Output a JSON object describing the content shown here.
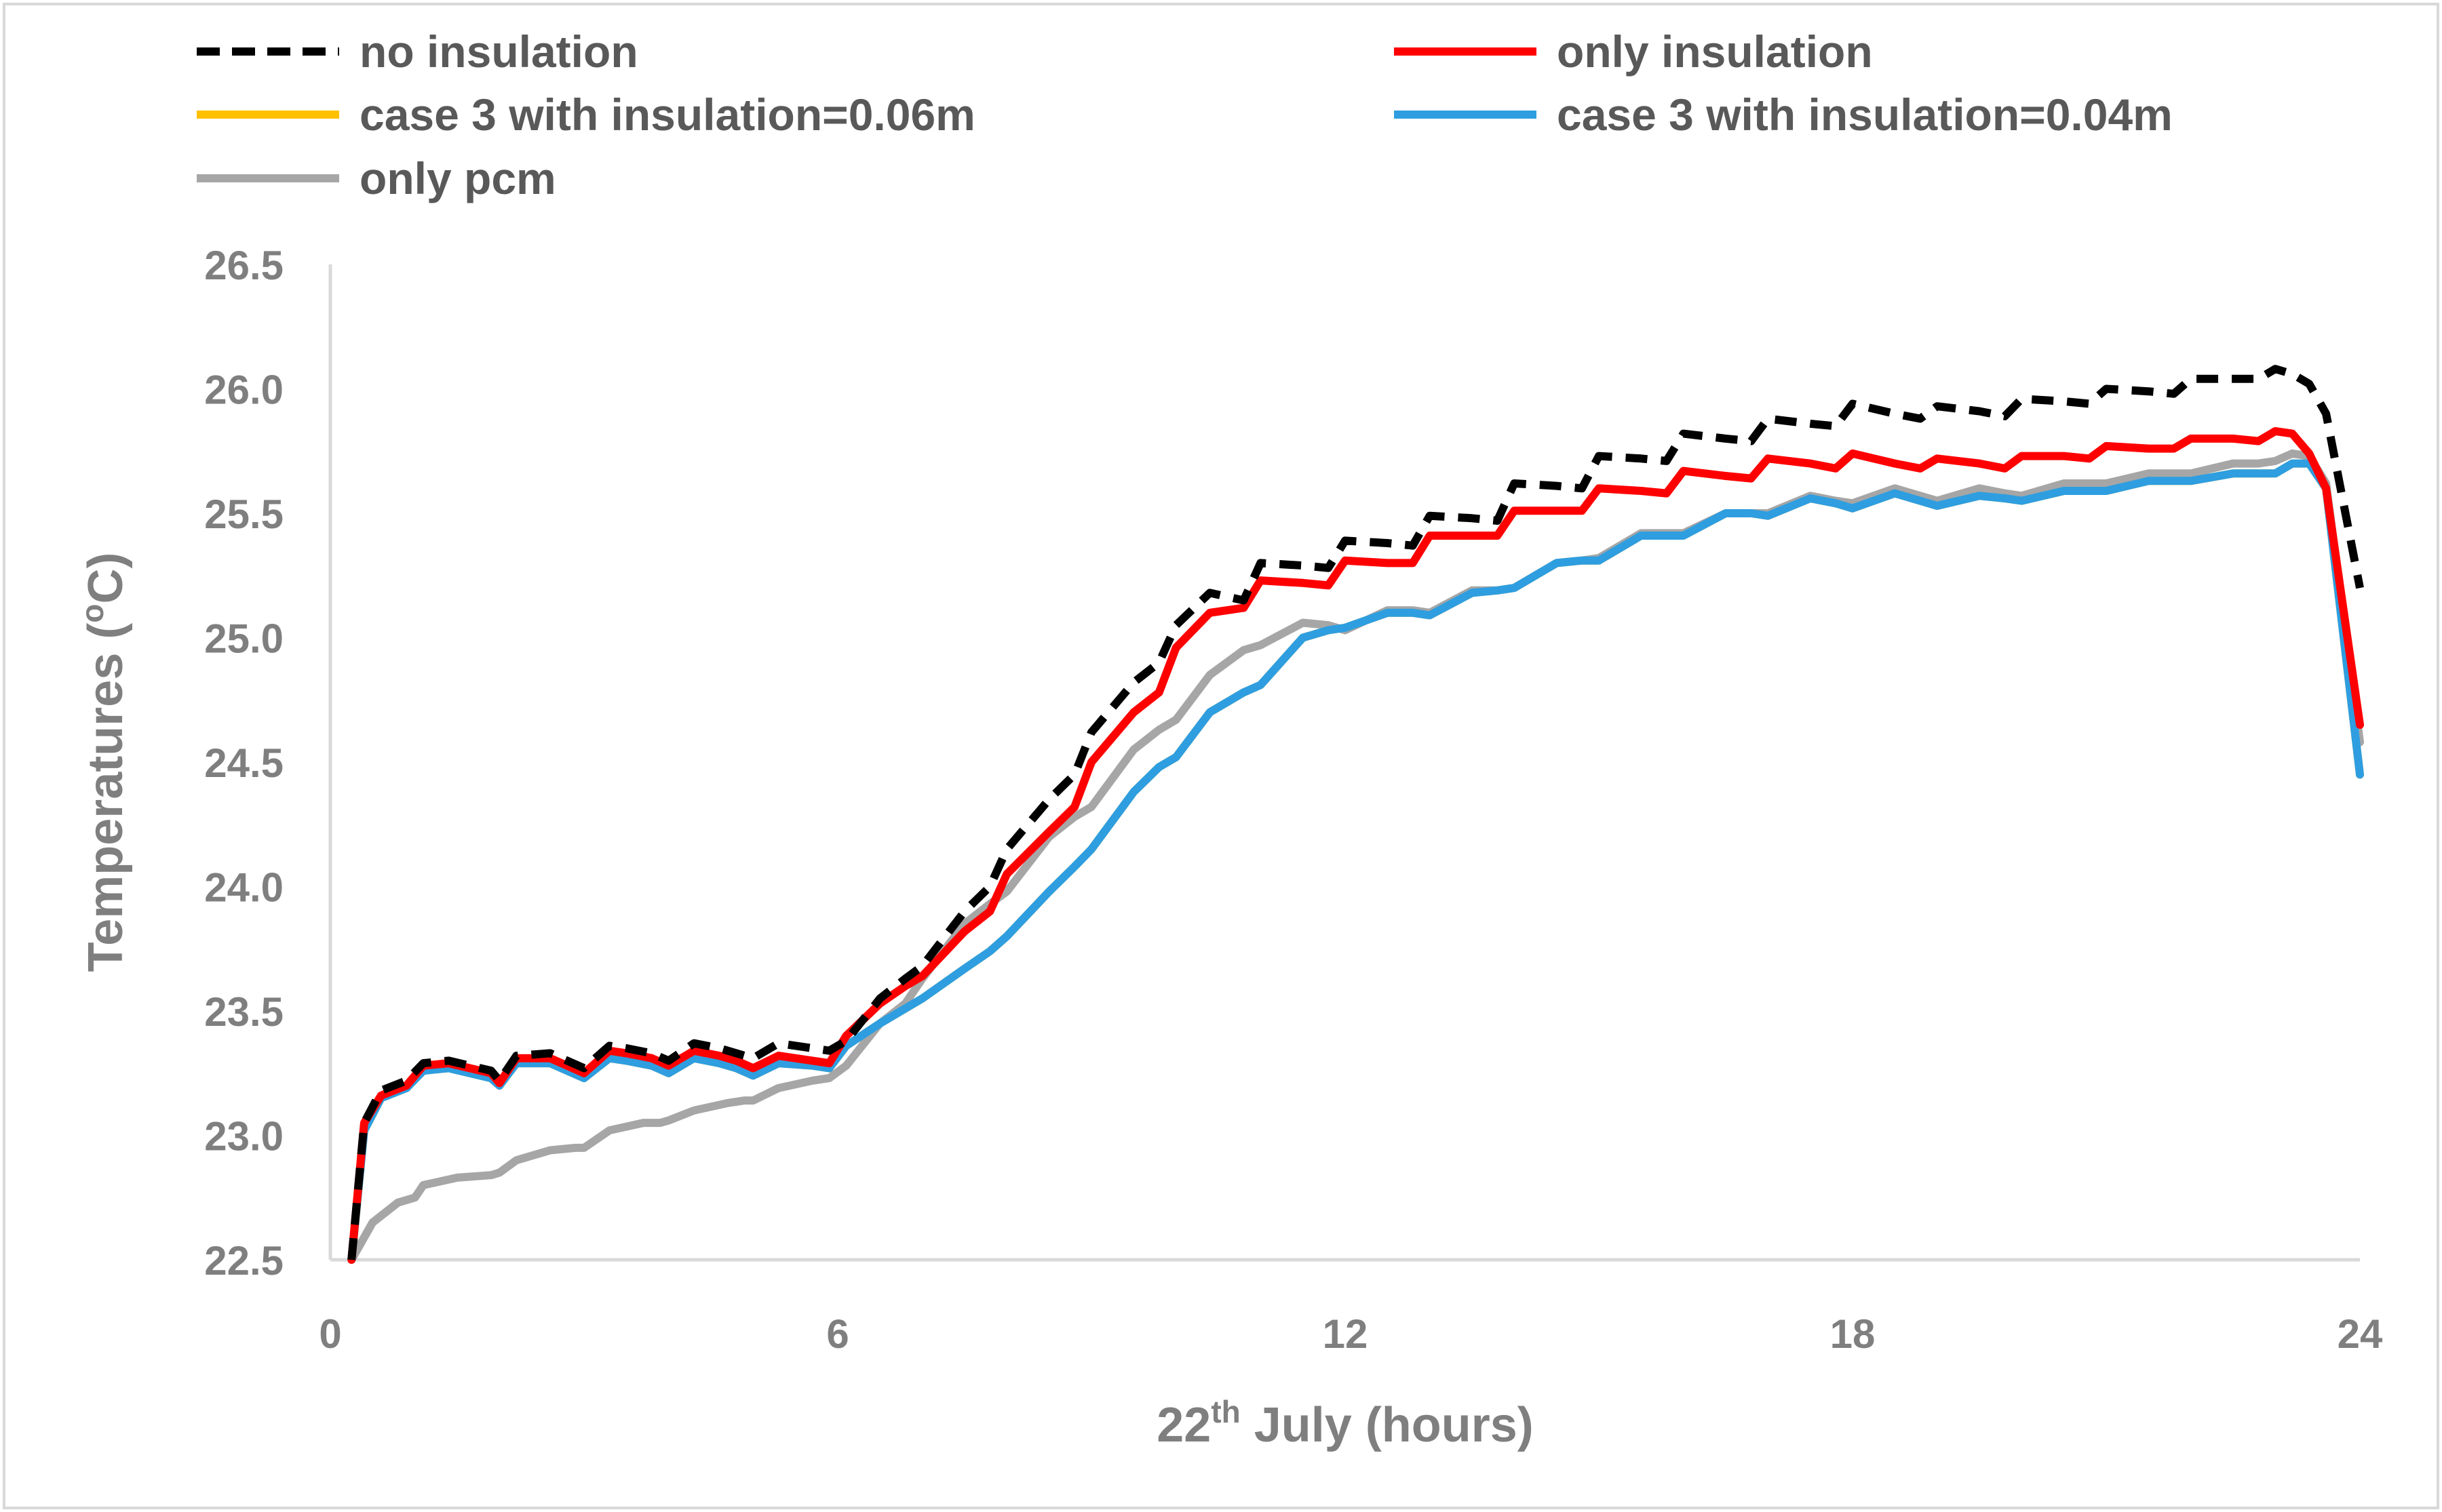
{
  "chart_data": {
    "type": "line",
    "title": "",
    "xlabel": {
      "main": "22",
      "sup": "th",
      "rest": " July (hours)"
    },
    "ylabel": {
      "main": "Temperatures (",
      "sup": "o",
      "rest": "C)"
    },
    "xlim": [
      0,
      24
    ],
    "ylim": [
      22.5,
      26.5
    ],
    "xticks": [
      0,
      6,
      12,
      18,
      24
    ],
    "xtick_labels": [
      "0",
      "6",
      "12",
      "18",
      "24"
    ],
    "yticks": [
      22.5,
      23.0,
      23.5,
      24.0,
      24.5,
      25.0,
      25.5,
      26.0,
      26.5
    ],
    "ytick_labels": [
      "22.5",
      "23.0",
      "23.5",
      "24.0",
      "24.5",
      "25.0",
      "25.5",
      "26.0",
      "26.5"
    ],
    "grid": false,
    "legend_position": "top",
    "series": [
      {
        "name": "no insulation",
        "color": "#000000",
        "dash": "dashed",
        "x": [
          0.25,
          0.4,
          0.6,
          0.9,
          1.1,
          1.4,
          1.9,
          2.0,
          2.2,
          2.6,
          2.8,
          3.0,
          3.3,
          3.5,
          3.8,
          4.0,
          4.3,
          4.6,
          4.8,
          5.0,
          5.3,
          5.7,
          5.9,
          6.1,
          6.5,
          6.8,
          7.0,
          7.5,
          7.8,
          8.0,
          8.5,
          8.8,
          9.0,
          9.5,
          9.8,
          10.0,
          10.4,
          10.8,
          11.0,
          11.5,
          11.8,
          12.0,
          12.5,
          12.8,
          13.0,
          13.5,
          13.8,
          14.0,
          14.5,
          14.8,
          15.0,
          15.5,
          15.8,
          16.0,
          16.5,
          16.8,
          17.0,
          17.5,
          17.8,
          18.0,
          18.5,
          18.8,
          19.0,
          19.5,
          19.8,
          20.0,
          20.5,
          20.8,
          21.0,
          21.5,
          21.8,
          22.0,
          22.5,
          22.8,
          23.0,
          23.2,
          23.4,
          23.6,
          24.0
        ],
        "y": [
          22.5,
          23.05,
          23.18,
          23.22,
          23.29,
          23.3,
          23.26,
          23.22,
          23.32,
          23.33,
          23.3,
          23.27,
          23.36,
          23.35,
          23.33,
          23.3,
          23.37,
          23.35,
          23.33,
          23.31,
          23.37,
          23.35,
          23.34,
          23.38,
          23.55,
          23.63,
          23.68,
          23.9,
          24.0,
          24.15,
          24.35,
          24.45,
          24.62,
          24.82,
          24.9,
          25.05,
          25.18,
          25.15,
          25.3,
          25.29,
          25.28,
          25.39,
          25.38,
          25.37,
          25.49,
          25.48,
          25.47,
          25.62,
          25.61,
          25.6,
          25.73,
          25.72,
          25.71,
          25.82,
          25.8,
          25.79,
          25.88,
          25.86,
          25.85,
          25.94,
          25.9,
          25.88,
          25.93,
          25.91,
          25.89,
          25.96,
          25.95,
          25.94,
          26.0,
          25.99,
          25.98,
          26.04,
          26.04,
          26.04,
          26.08,
          26.06,
          26.02,
          25.9,
          25.2
        ]
      },
      {
        "name": "only insulation",
        "color": "#ff0000",
        "dash": "solid",
        "x": [
          0.25,
          0.4,
          0.6,
          0.9,
          1.1,
          1.4,
          1.9,
          2.0,
          2.2,
          2.6,
          2.8,
          3.0,
          3.3,
          3.5,
          3.8,
          4.0,
          4.3,
          4.6,
          4.8,
          5.0,
          5.3,
          5.7,
          5.9,
          6.1,
          6.5,
          6.8,
          7.0,
          7.5,
          7.8,
          8.0,
          8.5,
          8.8,
          9.0,
          9.5,
          9.8,
          10.0,
          10.4,
          10.8,
          11.0,
          11.5,
          11.8,
          12.0,
          12.5,
          12.8,
          13.0,
          13.5,
          13.8,
          14.0,
          14.5,
          14.8,
          15.0,
          15.5,
          15.8,
          16.0,
          16.5,
          16.8,
          17.0,
          17.5,
          17.8,
          18.0,
          18.5,
          18.8,
          19.0,
          19.5,
          19.8,
          20.0,
          20.5,
          20.8,
          21.0,
          21.5,
          21.8,
          22.0,
          22.5,
          22.8,
          23.0,
          23.2,
          23.4,
          23.6,
          24.0
        ],
        "y": [
          22.5,
          23.05,
          23.16,
          23.2,
          23.28,
          23.29,
          23.25,
          23.21,
          23.31,
          23.31,
          23.28,
          23.25,
          23.34,
          23.33,
          23.31,
          23.28,
          23.34,
          23.32,
          23.3,
          23.27,
          23.32,
          23.3,
          23.29,
          23.4,
          23.53,
          23.6,
          23.64,
          23.82,
          23.9,
          24.05,
          24.22,
          24.32,
          24.5,
          24.7,
          24.78,
          24.96,
          25.1,
          25.12,
          25.23,
          25.22,
          25.21,
          25.31,
          25.3,
          25.3,
          25.41,
          25.41,
          25.41,
          25.51,
          25.51,
          25.51,
          25.6,
          25.59,
          25.58,
          25.67,
          25.65,
          25.64,
          25.72,
          25.7,
          25.68,
          25.74,
          25.7,
          25.68,
          25.72,
          25.7,
          25.68,
          25.73,
          25.73,
          25.72,
          25.77,
          25.76,
          25.76,
          25.8,
          25.8,
          25.79,
          25.83,
          25.82,
          25.74,
          25.6,
          24.65
        ]
      },
      {
        "name": "case 3 with insulation=0.06m",
        "color": "#ffc000",
        "dash": "solid",
        "x": [
          0.25,
          0.4,
          0.6,
          0.9,
          1.1,
          1.4,
          1.9,
          2.0,
          2.2,
          2.6,
          2.8,
          3.0,
          3.3,
          3.5,
          3.8,
          4.0,
          4.3,
          4.6,
          4.8,
          5.0,
          5.3,
          5.7,
          5.9,
          6.1,
          6.5,
          6.8,
          7.0,
          7.5,
          7.8,
          8.0,
          8.5,
          8.8,
          9.0,
          9.5,
          9.8,
          10.0,
          10.4,
          10.8,
          11.0,
          11.5,
          11.8,
          12.0,
          12.5,
          12.8,
          13.0,
          13.5,
          13.8,
          14.0,
          14.5,
          14.8,
          15.0,
          15.5,
          15.8,
          16.0,
          16.5,
          16.8,
          17.0,
          17.5,
          17.8,
          18.0,
          18.5,
          18.8,
          19.0,
          19.5,
          19.8,
          20.0,
          20.5,
          20.8,
          21.0,
          21.5,
          21.8,
          22.0,
          22.5,
          22.8,
          23.0,
          23.2,
          23.4,
          23.6,
          24.0
        ],
        "y": [
          22.5,
          23.02,
          23.15,
          23.19,
          23.26,
          23.27,
          23.23,
          23.2,
          23.29,
          23.29,
          23.26,
          23.23,
          23.31,
          23.3,
          23.28,
          23.25,
          23.31,
          23.29,
          23.27,
          23.24,
          23.29,
          23.28,
          23.27,
          23.36,
          23.45,
          23.51,
          23.55,
          23.67,
          23.74,
          23.8,
          23.98,
          24.08,
          24.15,
          24.38,
          24.48,
          24.52,
          24.7,
          24.78,
          24.81,
          25.0,
          25.03,
          25.04,
          25.1,
          25.1,
          25.09,
          25.18,
          25.19,
          25.2,
          25.3,
          25.31,
          25.31,
          25.41,
          25.41,
          25.41,
          25.5,
          25.5,
          25.49,
          25.56,
          25.54,
          25.52,
          25.58,
          25.55,
          25.53,
          25.57,
          25.56,
          25.55,
          25.59,
          25.59,
          25.59,
          25.63,
          25.63,
          25.63,
          25.66,
          25.66,
          25.66,
          25.7,
          25.7,
          25.6,
          24.45
        ]
      },
      {
        "name": "case 3 with insulation=0.04m",
        "color": "#2e9ee0",
        "dash": "solid",
        "x": [
          0.25,
          0.4,
          0.6,
          0.9,
          1.1,
          1.4,
          1.9,
          2.0,
          2.2,
          2.6,
          2.8,
          3.0,
          3.3,
          3.5,
          3.8,
          4.0,
          4.3,
          4.6,
          4.8,
          5.0,
          5.3,
          5.7,
          5.9,
          6.1,
          6.5,
          6.8,
          7.0,
          7.5,
          7.8,
          8.0,
          8.5,
          8.8,
          9.0,
          9.5,
          9.8,
          10.0,
          10.4,
          10.8,
          11.0,
          11.5,
          11.8,
          12.0,
          12.5,
          12.8,
          13.0,
          13.5,
          13.8,
          14.0,
          14.5,
          14.8,
          15.0,
          15.5,
          15.8,
          16.0,
          16.5,
          16.8,
          17.0,
          17.5,
          17.8,
          18.0,
          18.5,
          18.8,
          19.0,
          19.5,
          19.8,
          20.0,
          20.5,
          20.8,
          21.0,
          21.5,
          21.8,
          22.0,
          22.5,
          22.8,
          23.0,
          23.2,
          23.4,
          23.6,
          24.0
        ],
        "y": [
          22.5,
          23.02,
          23.15,
          23.19,
          23.26,
          23.27,
          23.23,
          23.2,
          23.29,
          23.29,
          23.26,
          23.23,
          23.31,
          23.3,
          23.28,
          23.25,
          23.31,
          23.29,
          23.27,
          23.24,
          23.29,
          23.28,
          23.27,
          23.36,
          23.45,
          23.51,
          23.55,
          23.67,
          23.74,
          23.8,
          23.98,
          24.08,
          24.15,
          24.38,
          24.48,
          24.52,
          24.7,
          24.78,
          24.81,
          25.0,
          25.03,
          25.04,
          25.1,
          25.1,
          25.09,
          25.18,
          25.19,
          25.2,
          25.3,
          25.31,
          25.31,
          25.41,
          25.41,
          25.41,
          25.5,
          25.5,
          25.49,
          25.56,
          25.54,
          25.52,
          25.58,
          25.55,
          25.53,
          25.57,
          25.56,
          25.55,
          25.59,
          25.59,
          25.59,
          25.63,
          25.63,
          25.63,
          25.66,
          25.66,
          25.66,
          25.7,
          25.7,
          25.6,
          24.45
        ]
      },
      {
        "name": "only pcm",
        "color": "#a6a6a6",
        "dash": "solid",
        "x": [
          0.25,
          0.5,
          0.8,
          1.0,
          1.1,
          1.5,
          1.9,
          2.0,
          2.2,
          2.6,
          2.9,
          3.0,
          3.3,
          3.7,
          3.9,
          4.0,
          4.3,
          4.7,
          4.9,
          5.0,
          5.3,
          5.7,
          5.9,
          6.1,
          6.5,
          6.8,
          7.0,
          7.5,
          7.8,
          8.0,
          8.5,
          8.8,
          9.0,
          9.5,
          9.8,
          10.0,
          10.4,
          10.8,
          11.0,
          11.5,
          11.8,
          12.0,
          12.5,
          12.8,
          13.0,
          13.5,
          13.8,
          14.0,
          14.5,
          14.8,
          15.0,
          15.5,
          15.8,
          16.0,
          16.5,
          16.8,
          17.0,
          17.5,
          17.8,
          18.0,
          18.5,
          18.8,
          19.0,
          19.5,
          19.8,
          20.0,
          20.5,
          20.8,
          21.0,
          21.5,
          21.8,
          22.0,
          22.5,
          22.8,
          23.0,
          23.2,
          23.4,
          23.6,
          24.0
        ],
        "y": [
          22.5,
          22.65,
          22.73,
          22.75,
          22.8,
          22.83,
          22.84,
          22.85,
          22.9,
          22.94,
          22.95,
          22.95,
          23.02,
          23.05,
          23.05,
          23.06,
          23.1,
          23.13,
          23.14,
          23.14,
          23.19,
          23.22,
          23.23,
          23.28,
          23.45,
          23.53,
          23.63,
          23.85,
          23.93,
          23.98,
          24.2,
          24.28,
          24.32,
          24.55,
          24.63,
          24.67,
          24.85,
          24.95,
          24.97,
          25.06,
          25.05,
          25.03,
          25.11,
          25.11,
          25.1,
          25.19,
          25.19,
          25.2,
          25.3,
          25.31,
          25.32,
          25.42,
          25.42,
          25.42,
          25.5,
          25.5,
          25.5,
          25.57,
          25.55,
          25.54,
          25.6,
          25.57,
          25.55,
          25.6,
          25.58,
          25.57,
          25.62,
          25.62,
          25.62,
          25.66,
          25.66,
          25.66,
          25.7,
          25.7,
          25.71,
          25.74,
          25.73,
          25.62,
          24.58
        ]
      }
    ]
  }
}
